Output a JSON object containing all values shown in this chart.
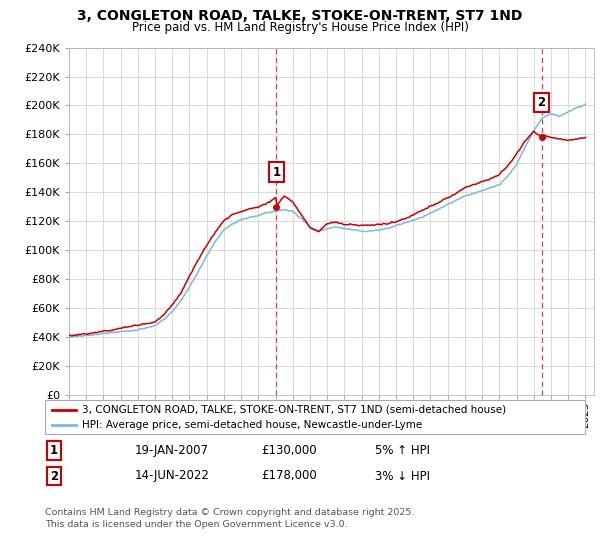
{
  "title": "3, CONGLETON ROAD, TALKE, STOKE-ON-TRENT, ST7 1ND",
  "subtitle": "Price paid vs. HM Land Registry's House Price Index (HPI)",
  "ylim": [
    0,
    240000
  ],
  "yticks": [
    0,
    20000,
    40000,
    60000,
    80000,
    100000,
    120000,
    140000,
    160000,
    180000,
    200000,
    220000,
    240000
  ],
  "hpi_color": "#7ab8e8",
  "price_color": "#cc0000",
  "t1_x": 2007.05,
  "t1_y": 130000,
  "t2_x": 2022.45,
  "t2_y": 178000,
  "transaction1_date": "19-JAN-2007",
  "transaction1_price": "£130,000",
  "transaction1_pct": "5% ↑ HPI",
  "transaction2_date": "14-JUN-2022",
  "transaction2_price": "£178,000",
  "transaction2_pct": "3% ↓ HPI",
  "legend_label_price": "3, CONGLETON ROAD, TALKE, STOKE-ON-TRENT, ST7 1ND (semi-detached house)",
  "legend_label_hpi": "HPI: Average price, semi-detached house, Newcastle-under-Lyme",
  "footer": "Contains HM Land Registry data © Crown copyright and database right 2025.\nThis data is licensed under the Open Government Licence v3.0.",
  "bg_color": "#ffffff",
  "grid_color": "#cccccc",
  "xmin": 1995,
  "xmax": 2025.5
}
